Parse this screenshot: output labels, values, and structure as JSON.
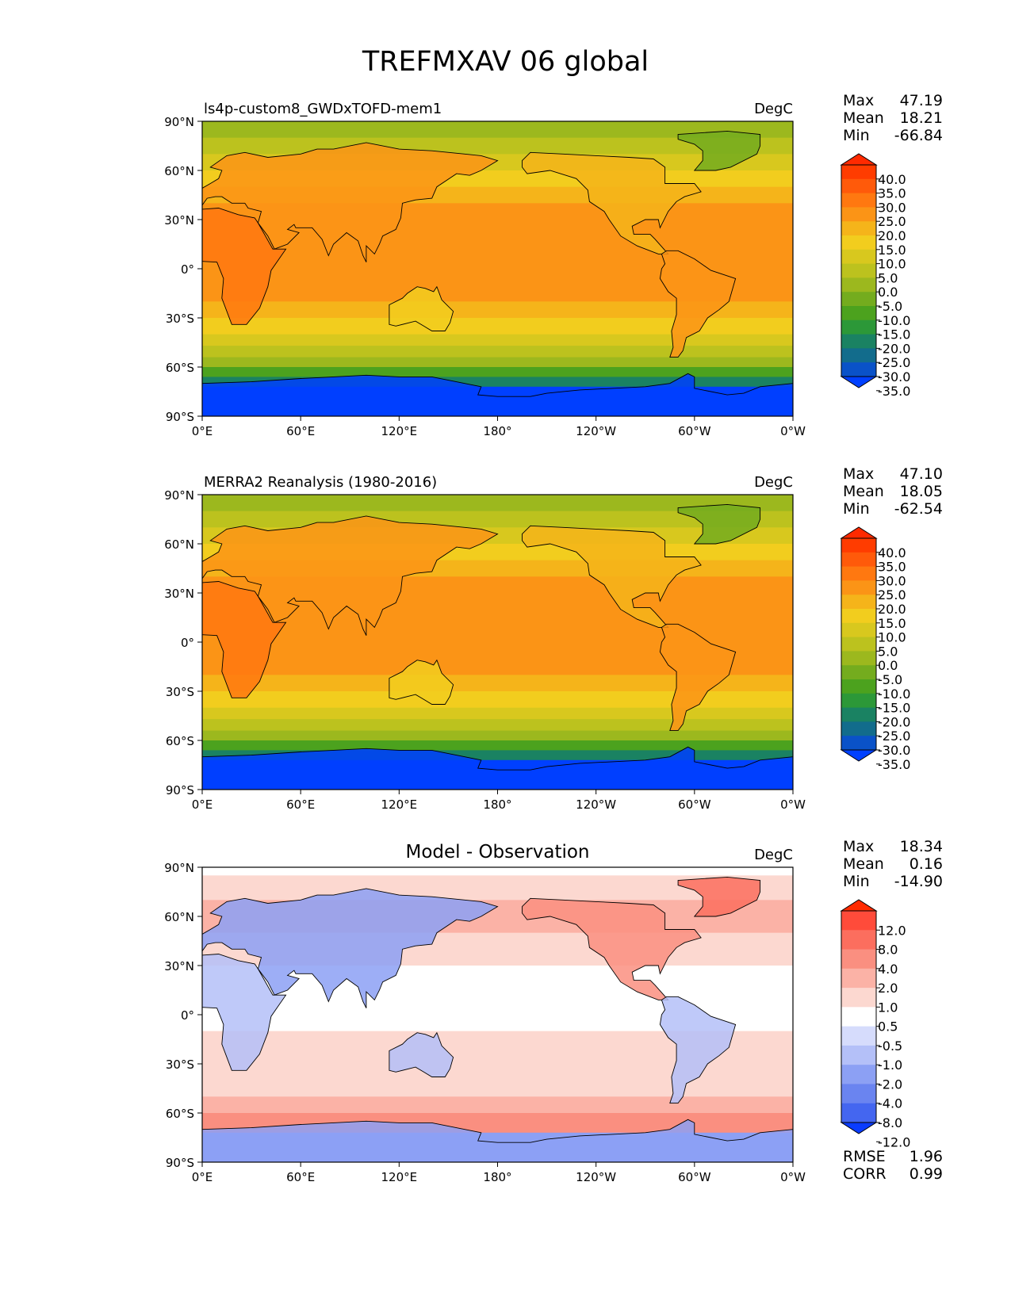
{
  "page": {
    "title": "TREFMXAV 06 global"
  },
  "chart_data": [
    {
      "type": "heatmap",
      "title": "ls4p-custom8_GWDxTOFD-mem1",
      "units": "DegC",
      "stats": [
        {
          "label": "Max",
          "value": "47.19"
        },
        {
          "label": "Mean",
          "value": "18.21"
        },
        {
          "label": "Min",
          "value": "-66.84"
        }
      ],
      "x_ticks": [
        "0°E",
        "60°E",
        "120°E",
        "180°",
        "120°W",
        "60°W",
        "0°W"
      ],
      "y_ticks": [
        "90°N",
        "60°N",
        "30°N",
        "0°",
        "30°S",
        "60°S",
        "90°S"
      ],
      "xlim": [
        0,
        360
      ],
      "ylim": [
        -90,
        90
      ],
      "colorbar": {
        "labels": [
          "40.0",
          "35.0",
          "30.0",
          "25.0",
          "20.0",
          "15.0",
          "10.0",
          "5.0",
          "0.0",
          "-5.0",
          "-10.0",
          "-15.0",
          "-20.0",
          "-25.0",
          "-30.0",
          "-35.0"
        ],
        "colors": [
          "#ff2a00",
          "#ff3c00",
          "#ff5a0a",
          "#ff7810",
          "#fb9416",
          "#f5b41a",
          "#f2cd1e",
          "#d8c81e",
          "#bcc21e",
          "#9cb81e",
          "#74ac1e",
          "#4ca21e",
          "#2c9838",
          "#1a8262",
          "#126c8c",
          "#0a52c8",
          "#0040ff"
        ]
      },
      "stats_extra": []
    },
    {
      "type": "heatmap",
      "title": "MERRA2 Reanalysis (1980-2016)",
      "units": "DegC",
      "stats": [
        {
          "label": "Max",
          "value": "47.10"
        },
        {
          "label": "Mean",
          "value": "18.05"
        },
        {
          "label": "Min",
          "value": "-62.54"
        }
      ],
      "x_ticks": [
        "0°E",
        "60°E",
        "120°E",
        "180°",
        "120°W",
        "60°W",
        "0°W"
      ],
      "y_ticks": [
        "90°N",
        "60°N",
        "30°N",
        "0°",
        "30°S",
        "60°S",
        "90°S"
      ],
      "xlim": [
        0,
        360
      ],
      "ylim": [
        -90,
        90
      ],
      "colorbar": {
        "labels": [
          "40.0",
          "35.0",
          "30.0",
          "25.0",
          "20.0",
          "15.0",
          "10.0",
          "5.0",
          "0.0",
          "-5.0",
          "-10.0",
          "-15.0",
          "-20.0",
          "-25.0",
          "-30.0",
          "-35.0"
        ],
        "colors": [
          "#ff2a00",
          "#ff3c00",
          "#ff5a0a",
          "#ff7810",
          "#fb9416",
          "#f5b41a",
          "#f2cd1e",
          "#d8c81e",
          "#bcc21e",
          "#9cb81e",
          "#74ac1e",
          "#4ca21e",
          "#2c9838",
          "#1a8262",
          "#126c8c",
          "#0a52c8",
          "#0040ff"
        ]
      },
      "stats_extra": []
    },
    {
      "type": "heatmap",
      "title": "Model - Observation",
      "units": "DegC",
      "stats": [
        {
          "label": "Max",
          "value": "18.34"
        },
        {
          "label": "Mean",
          "value": "0.16"
        },
        {
          "label": "Min",
          "value": "-14.90"
        }
      ],
      "x_ticks": [
        "0°E",
        "60°E",
        "120°E",
        "180°",
        "120°W",
        "60°W",
        "0°W"
      ],
      "y_ticks": [
        "90°N",
        "60°N",
        "30°N",
        "0°",
        "30°S",
        "60°S",
        "90°S"
      ],
      "xlim": [
        0,
        360
      ],
      "ylim": [
        -90,
        90
      ],
      "colorbar": {
        "labels": [
          "12.0",
          "8.0",
          "4.0",
          "2.0",
          "1.0",
          "0.5",
          "-0.5",
          "-1.0",
          "-2.0",
          "-4.0",
          "-8.0",
          "-12.0"
        ],
        "colors": [
          "#ff2a00",
          "#ff4b3a",
          "#fc6e5e",
          "#fa8f80",
          "#fbb2a6",
          "#fcd8d0",
          "#ffffff",
          "#d6dcfc",
          "#b4c0f8",
          "#8ca0f4",
          "#6a84f0",
          "#4466f0",
          "#0a3cff"
        ]
      },
      "stats_extra": [
        {
          "label": "RMSE",
          "value": "1.96"
        },
        {
          "label": "CORR",
          "value": "0.99"
        }
      ]
    }
  ]
}
